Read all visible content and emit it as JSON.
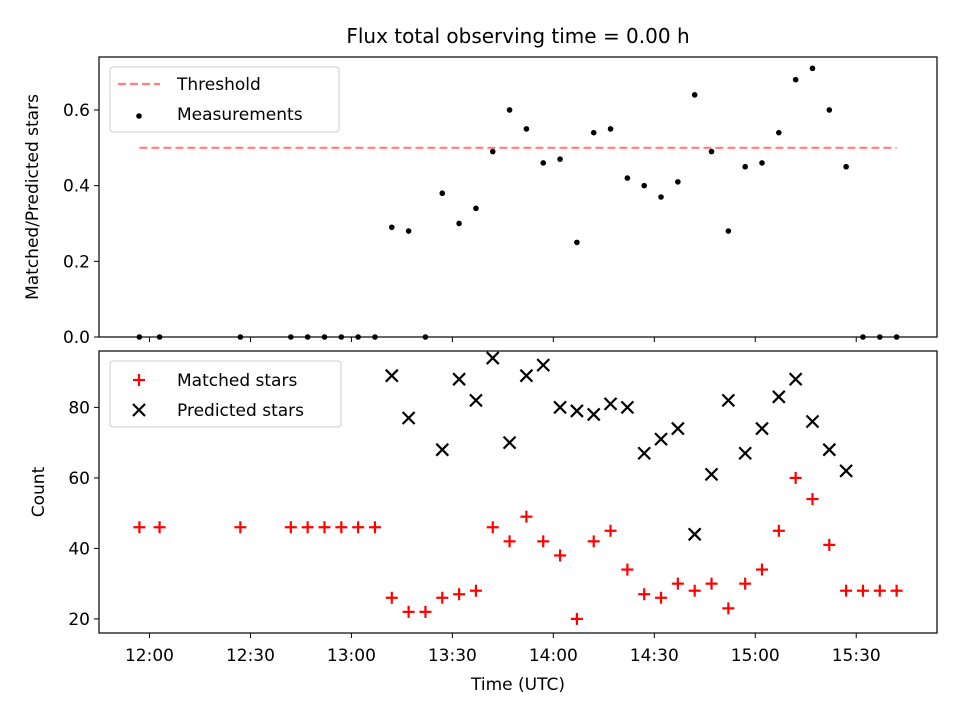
{
  "chart_data": [
    {
      "type": "scatter",
      "title": "Flux total observing time = 0.00 h",
      "xlabel": "",
      "ylabel": "Matched/Predicted stars",
      "ylim": [
        0,
        0.74
      ],
      "yticks": [
        "0.0",
        "0.2",
        "0.4",
        "0.6"
      ],
      "ytick_values": [
        0,
        0.2,
        0.4,
        0.6
      ],
      "legend_position": "upper-left",
      "threshold": {
        "name": "Threshold",
        "value": 0.5,
        "x_start": "11:57",
        "x_end": "15:42",
        "color": "#ff7f7f"
      },
      "series": [
        {
          "name": "Measurements",
          "color": "#000000",
          "x": [
            "11:57",
            "12:03",
            "12:27",
            "12:42",
            "12:47",
            "12:52",
            "12:57",
            "13:02",
            "13:07",
            "13:12",
            "13:17",
            "13:22",
            "13:27",
            "13:32",
            "13:37",
            "13:42",
            "13:47",
            "13:52",
            "13:57",
            "14:02",
            "14:07",
            "14:12",
            "14:17",
            "14:22",
            "14:27",
            "14:32",
            "14:37",
            "14:42",
            "14:47",
            "14:52",
            "14:57",
            "15:02",
            "15:07",
            "15:12",
            "15:17",
            "15:22",
            "15:27",
            "15:32",
            "15:37",
            "15:42"
          ],
          "y": [
            0,
            0,
            0,
            0,
            0,
            0,
            0,
            0,
            0,
            0.29,
            0.28,
            0,
            0.38,
            0.3,
            0.34,
            0.49,
            0.6,
            0.55,
            0.46,
            0.47,
            0.25,
            0.54,
            0.55,
            0.42,
            0.4,
            0.37,
            0.41,
            0.64,
            0.49,
            0.28,
            0.45,
            0.46,
            0.54,
            0.68,
            0.71,
            0.6,
            0.45,
            0,
            0,
            0
          ]
        }
      ]
    },
    {
      "type": "scatter",
      "title": "",
      "xlabel": "Time (UTC)",
      "ylabel": "Count",
      "ylim": [
        16,
        96
      ],
      "yticks": [
        "20",
        "40",
        "60",
        "80"
      ],
      "ytick_values": [
        20,
        40,
        60,
        80
      ],
      "xlim": [
        "11:45",
        "15:54"
      ],
      "xticks": [
        "12:00",
        "12:30",
        "13:00",
        "13:30",
        "14:00",
        "14:30",
        "15:00",
        "15:30"
      ],
      "legend_position": "upper-left",
      "series": [
        {
          "name": "Matched stars",
          "color": "#ff0000",
          "marker": "plus",
          "x": [
            "11:57",
            "12:03",
            "12:27",
            "12:42",
            "12:47",
            "12:52",
            "12:57",
            "13:02",
            "13:07",
            "13:12",
            "13:17",
            "13:22",
            "13:27",
            "13:32",
            "13:37",
            "13:42",
            "13:47",
            "13:52",
            "13:57",
            "14:02",
            "14:07",
            "14:12",
            "14:17",
            "14:22",
            "14:27",
            "14:32",
            "14:37",
            "14:42",
            "14:47",
            "14:52",
            "14:57",
            "15:02",
            "15:07",
            "15:12",
            "15:17",
            "15:22",
            "15:27",
            "15:32",
            "15:37",
            "15:42"
          ],
          "y": [
            46,
            46,
            46,
            46,
            46,
            46,
            46,
            46,
            46,
            26,
            22,
            22,
            26,
            27,
            28,
            46,
            42,
            49,
            42,
            38,
            20,
            42,
            45,
            34,
            27,
            26,
            30,
            28,
            30,
            23,
            30,
            34,
            45,
            60,
            54,
            41,
            28,
            28,
            28,
            28
          ]
        },
        {
          "name": "Predicted stars",
          "color": "#000000",
          "marker": "x",
          "x": [
            "13:12",
            "13:17",
            "13:27",
            "13:32",
            "13:37",
            "13:42",
            "13:47",
            "13:52",
            "13:57",
            "14:02",
            "14:07",
            "14:12",
            "14:17",
            "14:22",
            "14:27",
            "14:32",
            "14:37",
            "14:42",
            "14:47",
            "14:52",
            "14:57",
            "15:02",
            "15:07",
            "15:12",
            "15:17",
            "15:22",
            "15:27"
          ],
          "y": [
            89,
            77,
            68,
            88,
            82,
            94,
            70,
            89,
            92,
            80,
            79,
            78,
            81,
            80,
            67,
            71,
            74,
            44,
            61,
            82,
            67,
            74,
            83,
            88,
            76,
            68,
            62
          ]
        }
      ]
    }
  ]
}
